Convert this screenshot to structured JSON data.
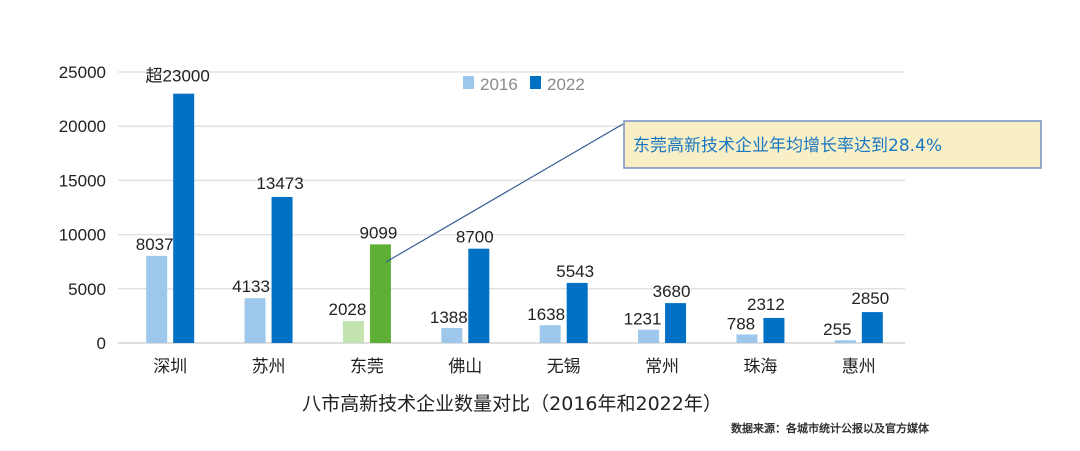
{
  "chart_data": {
    "type": "bar",
    "title": "",
    "xlabel": "八市高新技术企业数量对比（2016年和2022年）",
    "ylabel": "",
    "ylim": [
      0,
      25000
    ],
    "yticks": [
      "0",
      "5000",
      "10000",
      "15000",
      "20000",
      "25000"
    ],
    "grid": true,
    "legend_position": "top-center",
    "categories": [
      "深圳",
      "苏州",
      "东莞",
      "佛山",
      "无锡",
      "常州",
      "珠海",
      "惠州"
    ],
    "series": [
      {
        "name": "2016",
        "color": "#9dc8ec",
        "values": [
          8037,
          4133,
          2028,
          1388,
          1638,
          1231,
          788,
          255
        ],
        "labels": [
          "8037",
          "4133",
          "2028",
          "1388",
          "1638",
          "1231",
          "788",
          "255"
        ]
      },
      {
        "name": "2022",
        "color": "#0070c4",
        "values": [
          23000,
          13473,
          9099,
          8700,
          5543,
          3680,
          2312,
          2850
        ],
        "labels": [
          "超23000",
          "13473",
          "9099",
          "8700",
          "5543",
          "3680",
          "2312",
          "2850"
        ]
      }
    ],
    "highlight": {
      "category": "东莞",
      "color_2016": "#c3e3ae",
      "color_2022": "#5eaf35"
    },
    "annotation": "东莞高新技术企业年均增长率达到28.4%",
    "source": "数据来源：各城市统计公报以及官方媒体"
  }
}
